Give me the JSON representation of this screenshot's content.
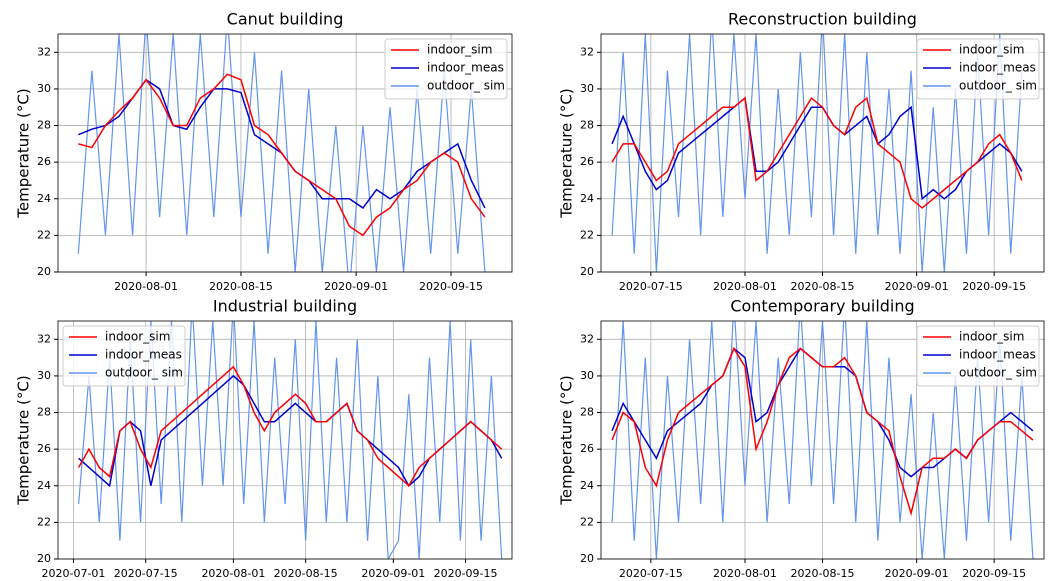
{
  "chart_data": [
    {
      "type": "line",
      "title": "Canut building",
      "y_label": "Temperature (°C)",
      "xlim": [
        "2020-07-19",
        "2020-09-24"
      ],
      "xticks": [
        "2020-08-01",
        "2020-08-15",
        "2020-09-01",
        "2020-09-15"
      ],
      "ylim": [
        20,
        33
      ],
      "yticks": [
        20,
        22,
        24,
        26,
        28,
        30,
        32
      ],
      "grid": true,
      "legend": "upper right",
      "x": [
        "2020-07-22",
        "2020-07-24",
        "2020-07-26",
        "2020-07-28",
        "2020-07-30",
        "2020-08-01",
        "2020-08-03",
        "2020-08-05",
        "2020-08-07",
        "2020-08-09",
        "2020-08-11",
        "2020-08-13",
        "2020-08-15",
        "2020-08-17",
        "2020-08-19",
        "2020-08-21",
        "2020-08-23",
        "2020-08-25",
        "2020-08-27",
        "2020-08-29",
        "2020-08-31",
        "2020-09-02",
        "2020-09-04",
        "2020-09-06",
        "2020-09-08",
        "2020-09-10",
        "2020-09-12",
        "2020-09-14",
        "2020-09-16",
        "2020-09-18",
        "2020-09-20"
      ],
      "series": [
        {
          "name": "indoor_sim",
          "color": "#ff0000",
          "values": [
            27,
            26.8,
            28,
            28.8,
            29.5,
            30.5,
            29.5,
            28,
            28,
            29.5,
            30,
            30.8,
            30.5,
            28,
            27.5,
            26.5,
            25.5,
            25,
            24.5,
            24,
            22.5,
            22,
            23,
            23.5,
            24.5,
            25,
            26,
            26.5,
            26,
            24,
            23
          ]
        },
        {
          "name": "indoor_meas",
          "color": "#0000cd",
          "values": [
            27.5,
            27.8,
            28,
            28.5,
            29.5,
            30.5,
            30,
            28,
            27.8,
            29,
            30,
            30,
            29.8,
            27.5,
            27,
            26.5,
            25.5,
            25,
            24,
            24,
            24,
            23.5,
            24.5,
            24,
            24.5,
            25.5,
            26,
            26.5,
            27,
            25,
            23.5
          ]
        },
        {
          "name": "outdoor_ sim",
          "color": "#6495ed",
          "values": [
            21,
            31,
            22,
            33,
            22,
            34,
            23,
            33,
            22,
            33,
            23,
            34,
            23,
            32,
            21,
            31,
            20,
            30,
            20,
            28,
            19,
            28,
            20,
            29,
            20,
            30,
            21,
            31,
            21,
            30,
            20
          ]
        }
      ]
    },
    {
      "type": "line",
      "title": "Reconstruction building",
      "y_label": "Temperature (°C)",
      "xlim": [
        "2020-07-06",
        "2020-09-24"
      ],
      "xticks": [
        "2020-07-15",
        "2020-08-01",
        "2020-08-15",
        "2020-09-01",
        "2020-09-15"
      ],
      "ylim": [
        20,
        33
      ],
      "yticks": [
        20,
        22,
        24,
        26,
        28,
        30,
        32
      ],
      "grid": true,
      "legend": "upper right",
      "x": [
        "2020-07-08",
        "2020-07-10",
        "2020-07-12",
        "2020-07-14",
        "2020-07-16",
        "2020-07-18",
        "2020-07-20",
        "2020-07-22",
        "2020-07-24",
        "2020-07-26",
        "2020-07-28",
        "2020-07-30",
        "2020-08-01",
        "2020-08-03",
        "2020-08-05",
        "2020-08-07",
        "2020-08-09",
        "2020-08-11",
        "2020-08-13",
        "2020-08-15",
        "2020-08-17",
        "2020-08-19",
        "2020-08-21",
        "2020-08-23",
        "2020-08-25",
        "2020-08-27",
        "2020-08-29",
        "2020-08-31",
        "2020-09-02",
        "2020-09-04",
        "2020-09-06",
        "2020-09-08",
        "2020-09-10",
        "2020-09-12",
        "2020-09-14",
        "2020-09-16",
        "2020-09-18",
        "2020-09-20"
      ],
      "series": [
        {
          "name": "indoor_sim",
          "color": "#ff0000",
          "values": [
            26,
            27,
            27,
            26,
            25,
            25.5,
            27,
            27.5,
            28,
            28.5,
            29,
            29,
            29.5,
            25,
            25.5,
            26.5,
            27.5,
            28.5,
            29.5,
            29,
            28,
            27.5,
            29,
            29.5,
            27,
            26.5,
            26,
            24,
            23.5,
            24,
            24.5,
            25,
            25.5,
            26,
            27,
            27.5,
            26.5,
            25
          ]
        },
        {
          "name": "indoor_meas",
          "color": "#0000cd",
          "values": [
            27,
            28.5,
            27,
            25.5,
            24.5,
            25,
            26.5,
            27,
            27.5,
            28,
            28.5,
            29,
            29.5,
            25.5,
            25.5,
            26,
            27,
            28,
            29,
            29,
            28,
            27.5,
            28,
            28.5,
            27,
            27.5,
            28.5,
            29,
            24,
            24.5,
            24,
            24.5,
            25.5,
            26,
            26.5,
            27,
            26.5,
            25.5
          ]
        },
        {
          "name": "outdoor_ sim",
          "color": "#6495ed",
          "values": [
            22,
            32,
            21,
            33,
            20,
            31,
            23,
            33,
            22,
            34,
            23,
            33,
            24,
            33,
            21,
            30,
            22,
            32,
            23,
            34,
            22,
            33,
            21,
            32,
            22,
            30,
            21,
            31,
            20,
            29,
            20,
            30,
            21,
            32,
            22,
            33,
            21,
            31
          ]
        }
      ]
    },
    {
      "type": "line",
      "title": "Industrial building",
      "y_label": "Temperature (°C)",
      "xlim": [
        "2020-06-28",
        "2020-09-24"
      ],
      "xticks": [
        "2020-07-01",
        "2020-07-15",
        "2020-08-01",
        "2020-08-15",
        "2020-09-01",
        "2020-09-15"
      ],
      "ylim": [
        20,
        33
      ],
      "yticks": [
        20,
        22,
        24,
        26,
        28,
        30,
        32
      ],
      "grid": true,
      "legend": "upper left",
      "x": [
        "2020-07-02",
        "2020-07-04",
        "2020-07-06",
        "2020-07-08",
        "2020-07-10",
        "2020-07-12",
        "2020-07-14",
        "2020-07-16",
        "2020-07-18",
        "2020-07-20",
        "2020-07-22",
        "2020-07-24",
        "2020-07-26",
        "2020-07-28",
        "2020-07-30",
        "2020-08-01",
        "2020-08-03",
        "2020-08-05",
        "2020-08-07",
        "2020-08-09",
        "2020-08-11",
        "2020-08-13",
        "2020-08-15",
        "2020-08-17",
        "2020-08-19",
        "2020-08-21",
        "2020-08-23",
        "2020-08-25",
        "2020-08-27",
        "2020-08-29",
        "2020-08-31",
        "2020-09-02",
        "2020-09-04",
        "2020-09-06",
        "2020-09-08",
        "2020-09-10",
        "2020-09-12",
        "2020-09-14",
        "2020-09-16",
        "2020-09-18",
        "2020-09-20",
        "2020-09-22"
      ],
      "series": [
        {
          "name": "indoor_sim",
          "color": "#ff0000",
          "values": [
            25,
            26,
            25,
            24.5,
            27,
            27.5,
            26,
            25,
            27,
            27.5,
            28,
            28.5,
            29,
            29.5,
            30,
            30.5,
            29.5,
            28,
            27,
            28,
            28.5,
            29,
            28.5,
            27.5,
            27.5,
            28,
            28.5,
            27,
            26.5,
            25.5,
            25,
            24.5,
            24,
            25,
            25.5,
            26,
            26.5,
            27,
            27.5,
            27,
            26.5,
            26
          ]
        },
        {
          "name": "indoor_meas",
          "color": "#0000cd",
          "values": [
            25.5,
            25,
            24.5,
            24,
            27,
            27.5,
            27,
            24,
            26.5,
            27,
            27.5,
            28,
            28.5,
            29,
            29.5,
            30,
            29.5,
            28.5,
            27.5,
            27.5,
            28,
            28.5,
            28,
            27.5,
            27.5,
            28,
            28.5,
            27,
            26.5,
            26,
            25.5,
            25,
            24,
            24.5,
            25.5,
            26,
            26.5,
            27,
            27.5,
            27,
            26.5,
            25.5
          ]
        },
        {
          "name": "outdoor_ sim",
          "color": "#6495ed",
          "values": [
            23,
            30,
            22,
            31,
            21,
            32,
            22,
            33,
            23,
            33,
            22,
            34,
            24,
            33,
            24,
            34,
            23,
            33,
            22,
            31,
            23,
            32,
            21,
            33,
            22,
            31,
            22,
            32,
            21,
            30,
            20,
            21,
            29,
            20,
            31,
            22,
            33,
            21,
            32,
            21,
            30,
            20
          ]
        }
      ]
    },
    {
      "type": "line",
      "title": "Contemporary building",
      "y_label": "Temperature (°C)",
      "xlim": [
        "2020-07-06",
        "2020-09-24"
      ],
      "xticks": [
        "2020-07-15",
        "2020-08-01",
        "2020-08-15",
        "2020-09-01",
        "2020-09-15"
      ],
      "ylim": [
        20,
        33
      ],
      "yticks": [
        20,
        22,
        24,
        26,
        28,
        30,
        32
      ],
      "grid": true,
      "legend": "upper right",
      "x": [
        "2020-07-08",
        "2020-07-10",
        "2020-07-12",
        "2020-07-14",
        "2020-07-16",
        "2020-07-18",
        "2020-07-20",
        "2020-07-22",
        "2020-07-24",
        "2020-07-26",
        "2020-07-28",
        "2020-07-30",
        "2020-08-01",
        "2020-08-03",
        "2020-08-05",
        "2020-08-07",
        "2020-08-09",
        "2020-08-11",
        "2020-08-13",
        "2020-08-15",
        "2020-08-17",
        "2020-08-19",
        "2020-08-21",
        "2020-08-23",
        "2020-08-25",
        "2020-08-27",
        "2020-08-29",
        "2020-08-31",
        "2020-09-02",
        "2020-09-04",
        "2020-09-06",
        "2020-09-08",
        "2020-09-10",
        "2020-09-12",
        "2020-09-14",
        "2020-09-16",
        "2020-09-18",
        "2020-09-20",
        "2020-09-22"
      ],
      "series": [
        {
          "name": "indoor_sim",
          "color": "#ff0000",
          "values": [
            26.5,
            28,
            27.5,
            25,
            24,
            26.5,
            28,
            28.5,
            29,
            29.5,
            30,
            31.5,
            30.5,
            26,
            27.5,
            29.5,
            31,
            31.5,
            31,
            30.5,
            30.5,
            31,
            30,
            28,
            27.5,
            27,
            24.5,
            22.5,
            25,
            25.5,
            25.5,
            26,
            25.5,
            26.5,
            27,
            27.5,
            27.5,
            27,
            26.5
          ]
        },
        {
          "name": "indoor_meas",
          "color": "#0000cd",
          "values": [
            27,
            28.5,
            27.5,
            26.5,
            25.5,
            27,
            27.5,
            28,
            28.5,
            29.5,
            30,
            31.5,
            31,
            27.5,
            28,
            29.5,
            30.5,
            31.5,
            31,
            30.5,
            30.5,
            30.5,
            30,
            28,
            27.5,
            26.5,
            25,
            24.5,
            25,
            25,
            25.5,
            26,
            25.5,
            26.5,
            27,
            27.5,
            28,
            27.5,
            27
          ]
        },
        {
          "name": "outdoor_ sim",
          "color": "#6495ed",
          "values": [
            22,
            33,
            21,
            31,
            20,
            30,
            22,
            32,
            23,
            33,
            22,
            34,
            24,
            33,
            22,
            31,
            23,
            34,
            24,
            33,
            23,
            34,
            22,
            33,
            21,
            31,
            22,
            29,
            20,
            28,
            20,
            30,
            21,
            31,
            22,
            32,
            21,
            30,
            20
          ]
        }
      ]
    }
  ]
}
